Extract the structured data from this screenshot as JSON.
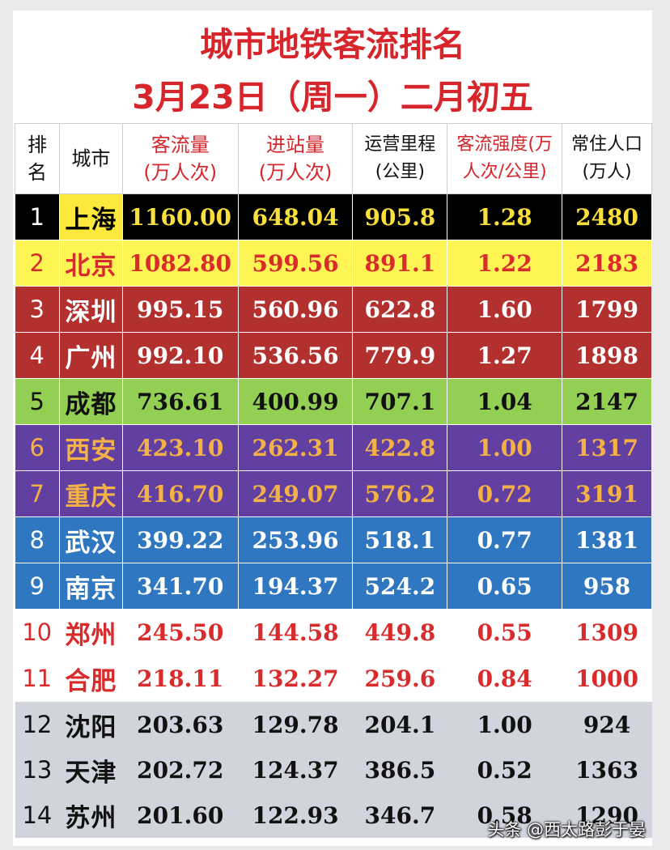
{
  "title_line1": "城市地铁客流排名",
  "title_line2": "3月23日（周一）二月初五",
  "headers": {
    "rank": [
      "排",
      "名"
    ],
    "city": "城市",
    "ridership": [
      "客流量",
      "(万人次)"
    ],
    "entries": [
      "进站量",
      "(万人次)"
    ],
    "mileage": [
      "运营里程",
      "(公里)"
    ],
    "intensity": [
      "客流强度(万",
      "人次/公里)"
    ],
    "population": [
      "常住人口",
      "(万人)"
    ]
  },
  "rows": [
    {
      "rank": "1",
      "city": "上海",
      "ridership": "1160.00",
      "entries": "648.04",
      "mileage": "905.8",
      "intensity": "1.28",
      "population": "2480",
      "bg": "#000000",
      "rank_color": "#ffffff",
      "city_bg": "#fde93e",
      "city_color": "#000000",
      "value_color": "#f9df3b"
    },
    {
      "rank": "2",
      "city": "北京",
      "ridership": "1082.80",
      "entries": "599.56",
      "mileage": "891.1",
      "intensity": "1.22",
      "population": "2183",
      "bg": "#fef454",
      "rank_color": "#d92b2b",
      "city_bg": "#fef454",
      "city_color": "#d92b2b",
      "value_color": "#d92b2b"
    },
    {
      "rank": "3",
      "city": "深圳",
      "ridership": "995.15",
      "entries": "560.96",
      "mileage": "622.8",
      "intensity": "1.60",
      "population": "1799",
      "bg": "#b2302e",
      "rank_color": "#ffffff",
      "city_bg": "#b2302e",
      "city_color": "#ffffff",
      "value_color": "#ffffff"
    },
    {
      "rank": "4",
      "city": "广州",
      "ridership": "992.10",
      "entries": "536.56",
      "mileage": "779.9",
      "intensity": "1.27",
      "population": "1898",
      "bg": "#b2302e",
      "rank_color": "#ffffff",
      "city_bg": "#b2302e",
      "city_color": "#ffffff",
      "value_color": "#ffffff"
    },
    {
      "rank": "5",
      "city": "成都",
      "ridership": "736.61",
      "entries": "400.99",
      "mileage": "707.1",
      "intensity": "1.04",
      "population": "2147",
      "bg": "#93cf52",
      "rank_color": "#111111",
      "city_bg": "#93cf52",
      "city_color": "#111111",
      "value_color": "#111111"
    },
    {
      "rank": "6",
      "city": "西安",
      "ridership": "423.10",
      "entries": "262.31",
      "mileage": "422.8",
      "intensity": "1.00",
      "population": "1317",
      "bg": "#6240a2",
      "rank_color": "#f4b246",
      "city_bg": "#6240a2",
      "city_color": "#f4b246",
      "value_color": "#f4b246"
    },
    {
      "rank": "7",
      "city": "重庆",
      "ridership": "416.70",
      "entries": "249.07",
      "mileage": "576.2",
      "intensity": "0.72",
      "population": "3191",
      "bg": "#6240a2",
      "rank_color": "#f4b246",
      "city_bg": "#6240a2",
      "city_color": "#f4b246",
      "value_color": "#f4b246"
    },
    {
      "rank": "8",
      "city": "武汉",
      "ridership": "399.22",
      "entries": "253.96",
      "mileage": "518.1",
      "intensity": "0.77",
      "population": "1381",
      "bg": "#3077c1",
      "rank_color": "#ffffff",
      "city_bg": "#3077c1",
      "city_color": "#ffffff",
      "value_color": "#ffffff"
    },
    {
      "rank": "9",
      "city": "南京",
      "ridership": "341.70",
      "entries": "194.37",
      "mileage": "524.2",
      "intensity": "0.65",
      "population": "958",
      "bg": "#3077c1",
      "rank_color": "#ffffff",
      "city_bg": "#3077c1",
      "city_color": "#ffffff",
      "value_color": "#ffffff"
    },
    {
      "rank": "10",
      "city": "郑州",
      "ridership": "245.50",
      "entries": "144.58",
      "mileage": "449.8",
      "intensity": "0.55",
      "population": "1309",
      "bg": "#ffffff",
      "rank_color": "#d92b2b",
      "city_bg": "#ffffff",
      "city_color": "#d92b2b",
      "value_color": "#d92b2b"
    },
    {
      "rank": "11",
      "city": "合肥",
      "ridership": "218.11",
      "entries": "132.27",
      "mileage": "259.6",
      "intensity": "0.84",
      "population": "1000",
      "bg": "#ffffff",
      "rank_color": "#d92b2b",
      "city_bg": "#ffffff",
      "city_color": "#d92b2b",
      "value_color": "#d92b2b"
    },
    {
      "rank": "12",
      "city": "沈阳",
      "ridership": "203.63",
      "entries": "129.78",
      "mileage": "204.1",
      "intensity": "1.00",
      "population": "924",
      "bg": "#d1d4dc",
      "rank_color": "#111111",
      "city_bg": "#d1d4dc",
      "city_color": "#111111",
      "value_color": "#111111"
    },
    {
      "rank": "13",
      "city": "天津",
      "ridership": "202.72",
      "entries": "124.37",
      "mileage": "386.5",
      "intensity": "0.52",
      "population": "1363",
      "bg": "#d1d4dc",
      "rank_color": "#111111",
      "city_bg": "#d1d4dc",
      "city_color": "#111111",
      "value_color": "#111111"
    },
    {
      "rank": "14",
      "city": "苏州",
      "ridership": "201.60",
      "entries": "122.93",
      "mileage": "346.7",
      "intensity": "0.58",
      "population": "1290",
      "bg": "#d1d4dc",
      "rank_color": "#111111",
      "city_bg": "#d1d4dc",
      "city_color": "#111111",
      "value_color": "#111111"
    }
  ],
  "watermark": "头条 @西太路彭于晏",
  "colors": {
    "title": "#d6262b",
    "header_red": "#d6262b"
  }
}
